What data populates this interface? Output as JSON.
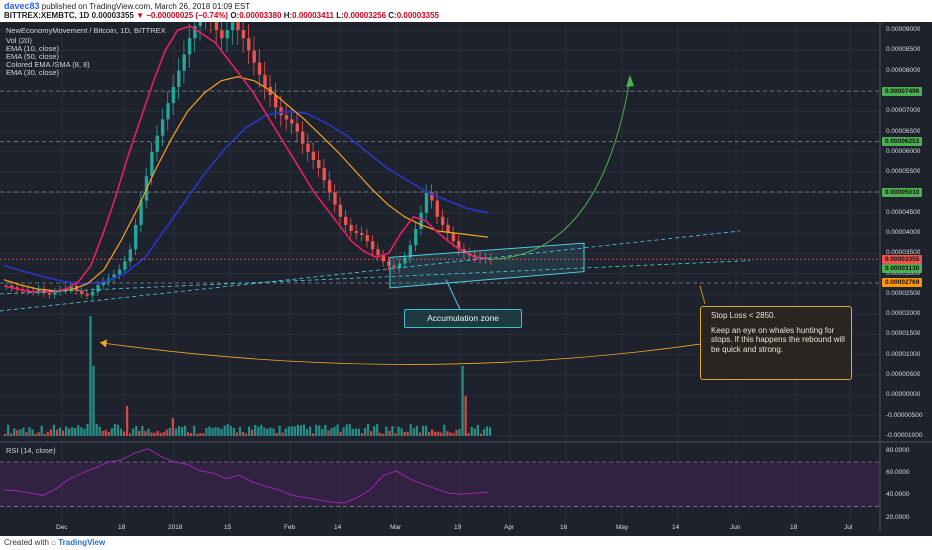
{
  "header": {
    "author": "davec83",
    "published": "published on TradingView.com, March 26, 2018 01:09 EST",
    "symbol": "BITTREX:XEMBTC, 1D",
    "open_label": "O:",
    "open": "0.00003380",
    "high_label": "H:",
    "high": "0.00003411",
    "low_label": "L:",
    "low": "0.00003256",
    "close_label": "C:",
    "close": "0.00003355",
    "last": "0.00003355",
    "change": "−0.00000025 (−0.74%)"
  },
  "legend": {
    "title": "NewEconomyMovement / Bitcoin, 1D, BITTREX",
    "items": [
      "Vol (20)",
      "EMA (10, close)",
      "EMA (50, close)",
      "Colored EMA /SMA (8, 8)",
      "EMA (30, close)"
    ]
  },
  "annotations": {
    "accumulation": "Accumulation zone",
    "stop_loss": "Stop Loss < 2850.",
    "note": "Keep an eye on whales hunting for stops. If this happens the rebound will be quick and strong."
  },
  "rsi": {
    "label": "RSI (14, close)",
    "ticks": [
      "80.0000",
      "60.0000",
      "40.0000",
      "20.0000"
    ]
  },
  "footer": {
    "prefix": "Created with",
    "brand": "TradingView"
  },
  "colors": {
    "background": "#1e222d",
    "up": "#26a69a",
    "down": "#ef5350",
    "ema10": "#e91e63",
    "ema30": "#f7a21b",
    "ema50": "#2a35c9",
    "colored_ema_up": "#4caf50",
    "rsi": "#9c27b0",
    "zone": "#4dd0e1",
    "arrow_target": "#4caf50",
    "arc": "#f5a623"
  },
  "chart_data": {
    "type": "candlestick",
    "x_ticks": [
      "Dec",
      "18",
      "2018",
      "15",
      "Feb",
      "14",
      "Mar",
      "19",
      "Apr",
      "16",
      "May",
      "14",
      "Jun",
      "18",
      "Jul"
    ],
    "y_ticks": [
      "0.00009000",
      "0.00008500",
      "0.00008000",
      "0.00007500",
      "0.00007000",
      "0.00006500",
      "0.00006000",
      "0.00005500",
      "0.00005000",
      "0.00004500",
      "0.00004000",
      "0.00003500",
      "0.00003000",
      "0.00002500",
      "0.00002000",
      "0.00001500",
      "0.00001000",
      "0.00000500",
      "0.00000000",
      "-0.00000500",
      "-0.00001000"
    ],
    "price_tags": [
      {
        "value": "0.00007496",
        "color": "#4caf50"
      },
      {
        "value": "0.00006253",
        "color": "#4caf50"
      },
      {
        "value": "0.00005010",
        "color": "#4caf50"
      },
      {
        "value": "0.00003355",
        "color": "#ef5350"
      },
      {
        "value": "0.00003130",
        "color": "#4caf50"
      },
      {
        "value": "0.00002769",
        "color": "#ff9800"
      }
    ],
    "close_path": [
      2.7e-05,
      2.66e-05,
      2.62e-05,
      2.6e-05,
      2.58e-05,
      2.56e-05,
      2.62e-05,
      2.52e-05,
      2.48e-05,
      2.55e-05,
      2.6e-05,
      2.62e-05,
      2.7e-05,
      2.58e-05,
      2.5e-05,
      2.46e-05,
      2.55e-05,
      2.72e-05,
      2.8e-05,
      2.88e-05,
      2.98e-05,
      3.1e-05,
      3.3e-05,
      3.6e-05,
      4.2e-05,
      4.8e-05,
      5.4e-05,
      6e-05,
      6.4e-05,
      6.8e-05,
      7.2e-05,
      7.6e-05,
      8e-05,
      8.4e-05,
      8.8e-05,
      9.1e-05,
      9.4e-05,
      9.6e-05,
      9.3e-05,
      9e-05,
      8.8e-05,
      9e-05,
      9.2e-05,
      9e-05,
      8.8e-05,
      8.5e-05,
      8.2e-05,
      7.9e-05,
      7.6e-05,
      7.4e-05,
      7.1e-05,
      6.9e-05,
      6.8e-05,
      6.7e-05,
      6.5e-05,
      6.2e-05,
      6e-05,
      5.8e-05,
      5.6e-05,
      5.3e-05,
      5e-05,
      4.7e-05,
      4.4e-05,
      4.2e-05,
      4.05e-05,
      4e-05,
      3.95e-05,
      3.8e-05,
      3.6e-05,
      3.45e-05,
      3.3e-05,
      3.2e-05,
      3.15e-05,
      3.25e-05,
      3.4e-05,
      3.7e-05,
      4.1e-05,
      4.5e-05,
      5e-05,
      4.8e-05,
      4.4e-05,
      4.2e-05,
      4e-05,
      3.8e-05,
      3.6e-05,
      3.5e-05,
      3.45e-05,
      3.4e-05,
      3.38e-05,
      3.36e-05,
      3.35e-05
    ],
    "ema10": [
      2.7e-05,
      2.62e-05,
      2.56e-05,
      2.55e-05,
      2.56e-05,
      2.62e-05,
      2.8e-05,
      3.2e-05,
      4e-05,
      4.9e-05,
      5.9e-05,
      6.8e-05,
      7.7e-05,
      8.5e-05,
      9e-05,
      9.1e-05,
      8.9e-05,
      8.7e-05,
      8.3e-05,
      7.9e-05,
      7.5e-05,
      7e-05,
      6.5e-05,
      6e-05,
      5.5e-05,
      5e-05,
      4.6e-05,
      4.2e-05,
      3.8e-05,
      3.55e-05,
      3.4e-05,
      3.5e-05,
      4e-05,
      4.4e-05,
      4.3e-05,
      4e-05,
      3.75e-05,
      3.55e-05,
      3.4e-05,
      3.38e-05
    ],
    "ema30": [
      2.85e-05,
      2.72e-05,
      2.62e-05,
      2.58e-05,
      2.6e-05,
      2.75e-05,
      3.1e-05,
      3.8e-05,
      4.6e-05,
      5.5e-05,
      6.3e-05,
      7e-05,
      7.45e-05,
      7.75e-05,
      7.85e-05,
      7.75e-05,
      7.5e-05,
      7.15e-05,
      6.8e-05,
      6.4e-05,
      6e-05,
      5.55e-05,
      5.1e-05,
      4.7e-05,
      4.4e-05,
      4.2e-05,
      4.05e-05,
      4e-05,
      3.95e-05,
      3.9e-05
    ],
    "ema50": [
      3.2e-05,
      3.05e-05,
      2.92e-05,
      2.8e-05,
      2.75e-05,
      2.8e-05,
      3e-05,
      3.4e-05,
      4.1e-05,
      4.8e-05,
      5.5e-05,
      6.1e-05,
      6.6e-05,
      6.9e-05,
      7e-05,
      6.95e-05,
      6.7e-05,
      6.4e-05,
      6e-05,
      5.6e-05,
      5.3e-05,
      5e-05,
      4.8e-05,
      4.6e-05,
      4.5e-05
    ],
    "rsi": [
      45,
      44,
      42,
      40,
      46,
      55,
      60,
      65,
      70,
      72,
      78,
      82,
      75,
      70,
      68,
      62,
      60,
      55,
      58,
      52,
      48,
      45,
      40,
      38,
      36,
      34,
      33,
      38,
      45,
      58,
      62,
      55,
      50,
      46,
      42,
      41,
      42,
      43
    ]
  }
}
